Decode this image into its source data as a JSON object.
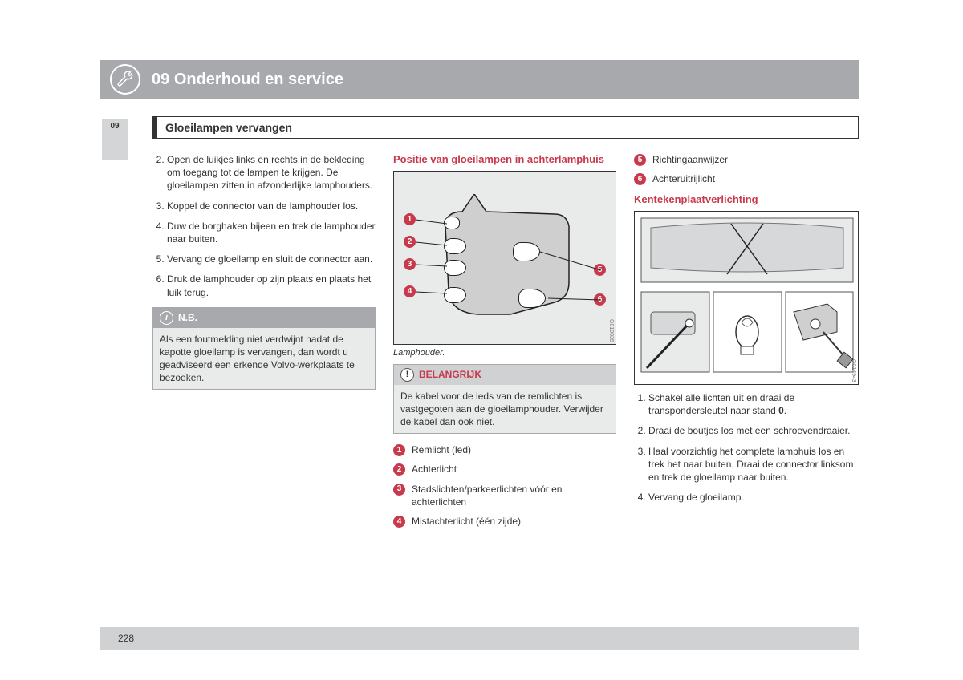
{
  "header": {
    "chapter_num": "09",
    "title": "Onderhoud en service"
  },
  "side_tab": "09",
  "section_title": "Gloeilampen vervangen",
  "col1": {
    "steps_start": 2,
    "steps": [
      "Open de luikjes links en rechts in de bekleding om toegang tot de lampen te krijgen. De gloeilampen zitten in afzonderlijke lamphouders.",
      "Koppel de connector van de lamphouder los.",
      "Duw de borghaken bijeen en trek de lamphouder naar buiten.",
      "Vervang de gloeilamp en sluit de connector aan.",
      "Druk de lamphouder op zijn plaats en plaats het luik terug."
    ],
    "note_label": "N.B.",
    "note_text": "Als een foutmelding niet verdwijnt nadat de kapotte gloeilamp is vervangen, dan wordt u geadviseerd een erkende Volvo-werkplaats te bezoeken."
  },
  "col2": {
    "heading": "Positie van gloeilampen in achterlamphuis",
    "caption": "Lamphouder.",
    "gcode": "G019035",
    "imp_label": "BELANGRIJK",
    "imp_text": "De kabel voor de leds van de remlichten is vastgegoten aan de gloeilamphouder. Verwijder de kabel dan ook niet.",
    "legend": [
      "Remlicht (led)",
      "Achterlicht",
      "Stadslichten/parkeerlichten vóór en achterlichten",
      "Mistachterlicht (één zijde)"
    ]
  },
  "col3": {
    "legend_cont": [
      "Richtingaanwijzer",
      "Achteruitrijlicht"
    ],
    "heading": "Kentekenplaatverlichting",
    "gcode": "G014943",
    "steps": [
      "Schakel alle lichten uit en draai de transpondersleutel naar stand 0.",
      "Draai de boutjes los met een schroevendraaier.",
      "Haal voorzichtig het complete lamphuis los en trek het naar buiten. Draai de connector linksom en trek de gloeilamp naar buiten.",
      "Vervang de gloeilamp."
    ]
  },
  "page_number": "228",
  "colors": {
    "accent_red": "#c7394b",
    "header_gray": "#a7a9ac",
    "box_gray": "#e9eaea"
  }
}
